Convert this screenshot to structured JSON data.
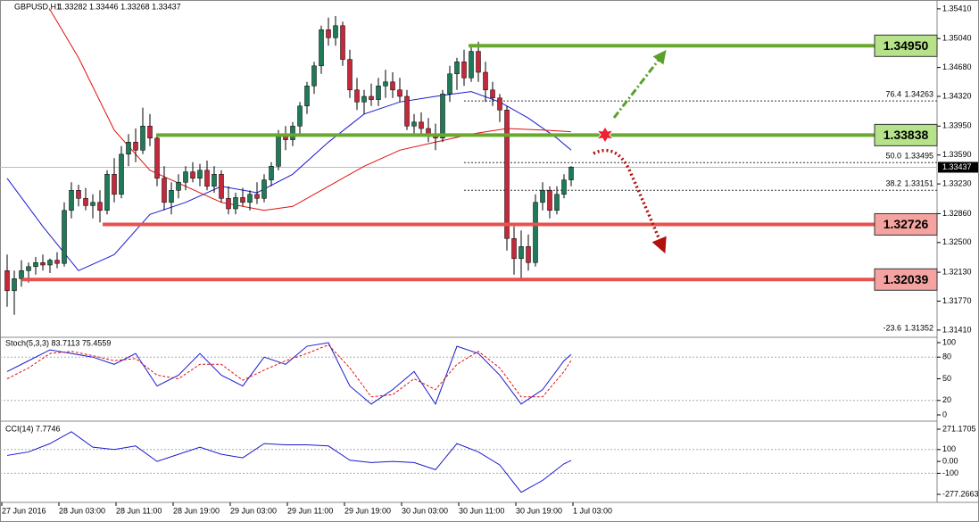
{
  "chart_data": {
    "type": "candlestick",
    "title": "GBPUSD,H1",
    "subtitle": "1.33282 1.33446 1.33268 1.33437",
    "ylim": [
      1.3132,
      1.3552
    ],
    "yticks": [
      {
        "value": 1.3541,
        "label": "1.35410"
      },
      {
        "value": 1.3504,
        "label": "1.35040"
      },
      {
        "value": 1.3468,
        "label": "1.34680"
      },
      {
        "value": 1.3432,
        "label": "1.34320"
      },
      {
        "value": 1.3395,
        "label": "1.33950"
      },
      {
        "value": 1.3359,
        "label": "1.33590"
      },
      {
        "value": 1.3323,
        "label": "1.33230"
      },
      {
        "value": 1.3286,
        "label": "1.32860"
      },
      {
        "value": 1.325,
        "label": "1.32500"
      },
      {
        "value": 1.3213,
        "label": "1.32130"
      },
      {
        "value": 1.3177,
        "label": "1.31770"
      },
      {
        "value": 1.3141,
        "label": "1.31410"
      }
    ],
    "current_price": {
      "value": 1.33437,
      "label": "1.33437"
    },
    "xtick_labels": [
      "27 Jun 2016",
      "28 Jun 03:00",
      "28 Jun 11:00",
      "28 Jun 19:00",
      "29 Jun 03:00",
      "29 Jun 11:00",
      "29 Jun 19:00",
      "30 Jun 03:00",
      "30 Jun 11:00",
      "30 Jun 19:00",
      "1 Jul 03:00"
    ],
    "colors": {
      "up": "#1f7a57",
      "down": "#c4283a"
    },
    "open": [
      1.3215,
      1.319,
      1.3205,
      1.3215,
      1.322,
      1.3225,
      1.3222,
      1.3228,
      1.3224,
      1.329,
      1.3315,
      1.3305,
      1.3296,
      1.33,
      1.329,
      1.3335,
      1.331,
      1.336,
      1.3375,
      1.3365,
      1.3395,
      1.338,
      1.333,
      1.33,
      1.3315,
      1.3325,
      1.3338,
      1.333,
      1.334,
      1.332,
      1.3335,
      1.3305,
      1.3292,
      1.3306,
      1.33,
      1.331,
      1.3305,
      1.3328,
      1.3345,
      1.3385,
      1.3378,
      1.3395,
      1.342,
      1.3445,
      1.347,
      1.3515,
      1.3505,
      1.352,
      1.3478,
      1.344,
      1.3425,
      1.3432,
      1.3428,
      1.3445,
      1.345,
      1.344,
      1.3432,
      1.3395,
      1.34,
      1.3392,
      1.3385,
      1.338,
      1.3435,
      1.346,
      1.3475,
      1.3455,
      1.3488,
      1.3462,
      1.344,
      1.343,
      1.3415,
      1.3255,
      1.323,
      1.3245,
      1.3225,
      1.33,
      1.3315,
      1.329,
      1.331,
      1.3328
    ],
    "high": [
      1.3235,
      1.3215,
      1.3228,
      1.3225,
      1.3232,
      1.3235,
      1.323,
      1.3238,
      1.33,
      1.3325,
      1.3322,
      1.3318,
      1.331,
      1.3315,
      1.334,
      1.3355,
      1.337,
      1.3385,
      1.3392,
      1.3418,
      1.341,
      1.3385,
      1.3345,
      1.3325,
      1.3335,
      1.3345,
      1.335,
      1.3348,
      1.3352,
      1.3345,
      1.334,
      1.332,
      1.3312,
      1.3318,
      1.3315,
      1.3325,
      1.3335,
      1.335,
      1.339,
      1.3395,
      1.34,
      1.3425,
      1.345,
      1.3475,
      1.352,
      1.353,
      1.3532,
      1.3525,
      1.349,
      1.3455,
      1.344,
      1.3448,
      1.3455,
      1.3465,
      1.3462,
      1.3455,
      1.344,
      1.341,
      1.3412,
      1.3405,
      1.3398,
      1.344,
      1.347,
      1.348,
      1.349,
      1.3495,
      1.35,
      1.3475,
      1.345,
      1.3435,
      1.342,
      1.327,
      1.3265,
      1.326,
      1.331,
      1.3325,
      1.332,
      1.332,
      1.3335,
      1.3345
    ],
    "low": [
      1.317,
      1.316,
      1.3195,
      1.32,
      1.321,
      1.3215,
      1.3212,
      1.3218,
      1.322,
      1.328,
      1.3295,
      1.329,
      1.328,
      1.3275,
      1.3285,
      1.33,
      1.3305,
      1.3345,
      1.335,
      1.336,
      1.337,
      1.332,
      1.329,
      1.3285,
      1.3305,
      1.3315,
      1.3325,
      1.332,
      1.3315,
      1.3312,
      1.33,
      1.3285,
      1.3285,
      1.3295,
      1.329,
      1.3298,
      1.33,
      1.332,
      1.334,
      1.3365,
      1.337,
      1.3385,
      1.341,
      1.3435,
      1.346,
      1.3495,
      1.3495,
      1.347,
      1.343,
      1.3415,
      1.341,
      1.342,
      1.342,
      1.343,
      1.343,
      1.3425,
      1.339,
      1.3385,
      1.3385,
      1.3375,
      1.3365,
      1.3375,
      1.3425,
      1.344,
      1.3445,
      1.345,
      1.345,
      1.3425,
      1.342,
      1.34,
      1.324,
      1.321,
      1.3205,
      1.3215,
      1.322,
      1.329,
      1.328,
      1.3285,
      1.3305,
      1.332
    ],
    "close": [
      1.319,
      1.3205,
      1.3215,
      1.322,
      1.3225,
      1.3222,
      1.3228,
      1.3224,
      1.329,
      1.3315,
      1.3305,
      1.3296,
      1.33,
      1.329,
      1.3335,
      1.331,
      1.336,
      1.3375,
      1.3365,
      1.3395,
      1.338,
      1.333,
      1.33,
      1.3315,
      1.3325,
      1.3338,
      1.333,
      1.334,
      1.332,
      1.3335,
      1.3305,
      1.3292,
      1.3306,
      1.33,
      1.331,
      1.3305,
      1.3328,
      1.3345,
      1.3385,
      1.3378,
      1.3395,
      1.342,
      1.3445,
      1.347,
      1.3515,
      1.3505,
      1.352,
      1.3478,
      1.344,
      1.3425,
      1.3432,
      1.3428,
      1.3445,
      1.345,
      1.344,
      1.3432,
      1.3395,
      1.34,
      1.3392,
      1.3385,
      1.338,
      1.3435,
      1.346,
      1.3475,
      1.3455,
      1.3488,
      1.3462,
      1.344,
      1.343,
      1.3415,
      1.3255,
      1.323,
      1.3245,
      1.3225,
      1.33,
      1.3315,
      1.329,
      1.331,
      1.3328,
      1.3344
    ],
    "averages": [
      {
        "color": "#1a1ad0",
        "x": [
          0,
          5,
          10,
          15,
          20,
          25,
          30,
          35,
          40,
          45,
          50,
          55,
          60,
          65,
          69,
          73,
          77,
          79
        ],
        "values": [
          1.333,
          1.327,
          1.3215,
          1.3235,
          1.3285,
          1.33,
          1.332,
          1.3312,
          1.3335,
          1.3375,
          1.341,
          1.3425,
          1.3432,
          1.3438,
          1.3425,
          1.3405,
          1.338,
          1.3365
        ]
      },
      {
        "color": "#e01010",
        "x": [
          6,
          10,
          15,
          20,
          25,
          30,
          36,
          40,
          45,
          50,
          55,
          60,
          65,
          70,
          75,
          79
        ],
        "values": [
          1.354,
          1.348,
          1.339,
          1.334,
          1.332,
          1.33,
          1.329,
          1.3295,
          1.332,
          1.3345,
          1.3365,
          1.3375,
          1.3385,
          1.3392,
          1.339,
          1.3388
        ]
      }
    ],
    "levels": [
      {
        "value": 1.3495,
        "label": "1.34950",
        "color": "#6aa82e",
        "box": "#b6e28a"
      },
      {
        "value": 1.33838,
        "label": "1.33838",
        "color": "#6aa82e",
        "box": "#b6e28a"
      },
      {
        "value": 1.32726,
        "label": "1.32726",
        "color": "#e8524e",
        "box": "#f4a3a0"
      },
      {
        "value": 1.32039,
        "label": "1.32039",
        "color": "#e8524e",
        "box": "#f4a3a0"
      }
    ],
    "fibs": [
      {
        "label": "76.4",
        "value": 1.34263,
        "value_label": "1.34263"
      },
      {
        "label": "50.0",
        "value": 1.33495,
        "value_label": "1.33495"
      },
      {
        "label": "38.2",
        "value": 1.33151,
        "value_label": "1.33151"
      },
      {
        "label": "-23.6",
        "value": 1.31352,
        "value_label": "1.31352"
      }
    ],
    "stoch": {
      "title": "Stoch(5,3,3) 83.7113 75.4559",
      "ylim": [
        0,
        100
      ],
      "yticks": [
        100,
        80,
        50,
        20,
        0
      ],
      "series": [
        {
          "color": "#1a1ad0",
          "x": [
            0,
            3,
            6,
            9,
            12,
            15,
            18,
            21,
            24,
            27,
            30,
            33,
            36,
            39,
            42,
            45,
            48,
            51,
            54,
            57,
            60,
            63,
            66,
            69,
            72,
            75,
            78,
            79
          ],
          "values": [
            60,
            75,
            90,
            85,
            80,
            70,
            85,
            40,
            55,
            85,
            55,
            40,
            80,
            70,
            95,
            100,
            40,
            15,
            35,
            60,
            15,
            95,
            85,
            55,
            15,
            35,
            75,
            83.7113
          ]
        },
        {
          "color": "#e01010",
          "x": [
            0,
            3,
            6,
            9,
            12,
            15,
            18,
            21,
            24,
            27,
            30,
            33,
            36,
            39,
            42,
            45,
            48,
            51,
            54,
            57,
            60,
            63,
            66,
            69,
            72,
            75,
            78,
            79
          ],
          "values": [
            50,
            65,
            85,
            88,
            82,
            75,
            78,
            55,
            50,
            70,
            70,
            48,
            62,
            75,
            85,
            97,
            65,
            25,
            28,
            50,
            35,
            70,
            88,
            65,
            25,
            25,
            60,
            75.4559
          ]
        }
      ]
    },
    "cci": {
      "title": "CCI(14) 7.7746",
      "ylim": [
        -277.2663,
        271.1705
      ],
      "yticks": [
        271.1705,
        100,
        {
          "value": 0,
          "label": "0.00"
        },
        -100,
        -277.2663
      ],
      "series": [
        {
          "color": "#1a1ad0",
          "x": [
            0,
            3,
            6,
            9,
            12,
            15,
            18,
            21,
            24,
            27,
            30,
            33,
            36,
            39,
            42,
            45,
            48,
            51,
            54,
            57,
            60,
            63,
            66,
            69,
            72,
            75,
            78,
            79
          ],
          "values": [
            50,
            80,
            150,
            250,
            120,
            100,
            130,
            0,
            60,
            120,
            60,
            30,
            150,
            140,
            140,
            130,
            10,
            -10,
            0,
            -10,
            -70,
            150,
            80,
            -30,
            -260,
            -160,
            -20,
            7.7746
          ]
        }
      ]
    }
  }
}
